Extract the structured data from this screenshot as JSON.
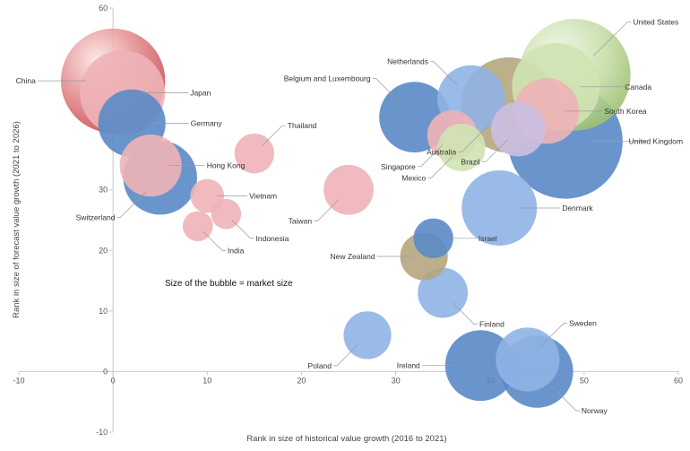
{
  "chart_data": {
    "type": "bubble",
    "xlabel": "Rank in size of historical value growth (2016 to 2021)",
    "ylabel": "Rank in size of forecast value growth (2021 to 2026)",
    "xlim": [
      -10,
      60
    ],
    "ylim": [
      -10,
      60
    ],
    "xticks": [
      -10,
      0,
      10,
      20,
      30,
      40,
      50,
      60
    ],
    "yticks": [
      -10,
      0,
      10,
      20,
      30,
      40,
      50,
      60
    ],
    "grid": false,
    "annotation": "Size of the bubble = market size",
    "palette": {
      "red": "#d9777a",
      "pink": "#eeb3b7",
      "blue": "#5a8ac6",
      "lightblue": "#8fb2e4",
      "green": "#b9d494",
      "lightgreen": "#cfe3b2",
      "tan": "#b5a67e",
      "lavender": "#cbbfe2"
    },
    "points": [
      {
        "label": "China",
        "x": 0,
        "y": 48,
        "size": 48,
        "color": "red",
        "label_pos": "left"
      },
      {
        "label": "Japan",
        "x": 1,
        "y": 46,
        "size": 32,
        "color": "pink",
        "label_pos": "right"
      },
      {
        "label": "Germany",
        "x": 2,
        "y": 41,
        "size": 20,
        "color": "blue",
        "label_pos": "right"
      },
      {
        "label": "Hong Kong",
        "x": 4,
        "y": 34,
        "size": 17,
        "color": "pink",
        "label_pos": "right"
      },
      {
        "label": "Switzerland",
        "x": 5,
        "y": 32,
        "size": 24,
        "color": "blue",
        "label_pos": "below-left"
      },
      {
        "label": "Thailand",
        "x": 15,
        "y": 36,
        "size": 7,
        "color": "pink",
        "label_pos": "above-right"
      },
      {
        "label": "Vietnam",
        "x": 10,
        "y": 29,
        "size": 5,
        "color": "pink",
        "label_pos": "right"
      },
      {
        "label": "Indonesia",
        "x": 12,
        "y": 26,
        "size": 4,
        "color": "pink",
        "label_pos": "below-right"
      },
      {
        "label": "India",
        "x": 9,
        "y": 24,
        "size": 4,
        "color": "pink",
        "label_pos": "below-right"
      },
      {
        "label": "Taiwan",
        "x": 25,
        "y": 30,
        "size": 11,
        "color": "pink",
        "label_pos": "below-left"
      },
      {
        "label": "Belgium and Luxembourg",
        "x": 32,
        "y": 42,
        "size": 22,
        "color": "blue",
        "label_pos": "above-left"
      },
      {
        "label": "Netherlands",
        "x": 38,
        "y": 45,
        "size": 20,
        "color": "lightblue",
        "label_pos": "above-left"
      },
      {
        "label": "Singapore",
        "x": 36,
        "y": 39,
        "size": 11,
        "color": "pink",
        "label_pos": "below-left"
      },
      {
        "label": "Mexico",
        "x": 37,
        "y": 37,
        "size": 10,
        "color": "lightgreen",
        "label_pos": "below-left"
      },
      {
        "label": "Australia",
        "x": 42,
        "y": 44,
        "size": 40,
        "color": "tan",
        "label_pos": "below-left"
      },
      {
        "label": "Brazil",
        "x": 43,
        "y": 40,
        "size": 13,
        "color": "lavender",
        "label_pos": "below-left"
      },
      {
        "label": "South Korea",
        "x": 46,
        "y": 43,
        "size": 19,
        "color": "pink",
        "label_pos": "right"
      },
      {
        "label": "United States",
        "x": 49,
        "y": 49,
        "size": 55,
        "color": "green",
        "label_pos": "above-right"
      },
      {
        "label": "Canada",
        "x": 47,
        "y": 47,
        "size": 34,
        "color": "lightgreen",
        "label_pos": "right"
      },
      {
        "label": "United Kingdom",
        "x": 48,
        "y": 38,
        "size": 58,
        "color": "blue",
        "label_pos": "right"
      },
      {
        "label": "Denmark",
        "x": 41,
        "y": 27,
        "size": 25,
        "color": "lightblue",
        "label_pos": "right"
      },
      {
        "label": "Israel",
        "x": 34,
        "y": 22,
        "size": 7,
        "color": "blue",
        "label_pos": "right"
      },
      {
        "label": "New Zealand",
        "x": 33,
        "y": 19,
        "size": 10,
        "color": "tan",
        "label_pos": "left"
      },
      {
        "label": "Finland",
        "x": 35,
        "y": 13,
        "size": 11,
        "color": "lightblue",
        "label_pos": "below-right"
      },
      {
        "label": "Poland",
        "x": 27,
        "y": 6,
        "size": 10,
        "color": "lightblue",
        "label_pos": "below-left"
      },
      {
        "label": "Ireland",
        "x": 39,
        "y": 1,
        "size": 22,
        "color": "blue",
        "label_pos": "left"
      },
      {
        "label": "Sweden",
        "x": 44,
        "y": 2,
        "size": 18,
        "color": "lightblue",
        "label_pos": "above-right"
      },
      {
        "label": "Norway",
        "x": 45,
        "y": 0,
        "size": 23,
        "color": "blue",
        "label_pos": "below-right"
      }
    ]
  }
}
